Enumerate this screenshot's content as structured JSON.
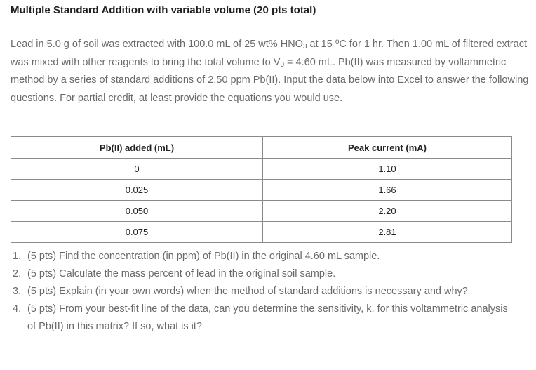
{
  "title": "Multiple Standard Addition with variable volume (20 pts total)",
  "paragraph": {
    "part1": "Lead in 5.0 g of soil was extracted with 100.0 mL of 25 wt% HNO",
    "hno3_sub": "3",
    "part2": " at 15 ",
    "degree": "o",
    "part3": "C for 1 hr. Then 1.00 mL of filtered extract was mixed with other reagents to bring the total volume to V",
    "v0_sub": "0",
    "part4": " = 4.60 mL. Pb(II) was measured by voltammetric method by a series of standard additions of 2.50 ppm Pb(II). Input the data below into Excel to answer the following questions. For partial credit, at least provide the equations you would use."
  },
  "table": {
    "headers": [
      "Pb(II) added (mL)",
      "Peak current (mA)"
    ],
    "rows": [
      [
        "0",
        "1.10"
      ],
      [
        "0.025",
        "1.66"
      ],
      [
        "0.050",
        "2.20"
      ],
      [
        "0.075",
        "2.81"
      ]
    ]
  },
  "questions": [
    {
      "num": "1.",
      "text": "(5 pts) Find the concentration (in ppm) of Pb(II) in the original 4.60 mL sample."
    },
    {
      "num": "2.",
      "text": "(5 pts) Calculate the mass percent of lead in the original soil sample."
    },
    {
      "num": "3.",
      "text": "(5 pts) Explain (in your own words) when the method of standard additions is necessary and why?"
    },
    {
      "num": "4.",
      "text": "(5 pts) From your best-fit line of the data, can you determine the sensitivity, k, for this voltammetric analysis of Pb(II) in this matrix? If so, what is it?"
    }
  ]
}
